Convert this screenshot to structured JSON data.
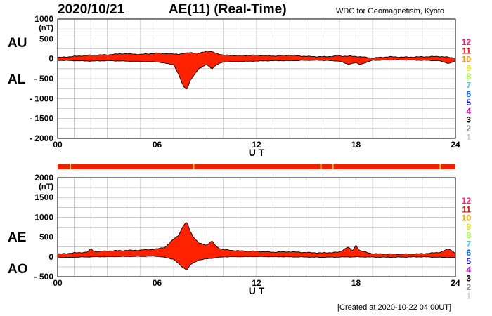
{
  "header": {
    "date": "2020/10/21",
    "title": "AE(11) (Real-Time)",
    "source": "WDC for Geomagnetism, Kyoto"
  },
  "footer": {
    "created": "[Created at 2020-10-22 04:00UT]"
  },
  "colors": {
    "fill": "#ff2200",
    "station_bar": "#ee2200",
    "station_gap": "#ffcc33",
    "grid": "#aaaaaa",
    "axis": "#000000"
  },
  "station_legend": [
    {
      "label": "12",
      "color": "#ff1a75"
    },
    {
      "label": "11",
      "color": "#ff0000"
    },
    {
      "label": "10",
      "color": "#ff9900"
    },
    {
      "label": "9",
      "color": "#e6e600"
    },
    {
      "label": "8",
      "color": "#99ff33"
    },
    {
      "label": "7",
      "color": "#33ccff"
    },
    {
      "label": "6",
      "color": "#0066ff"
    },
    {
      "label": "5",
      "color": "#0000cc"
    },
    {
      "label": "4",
      "color": "#cc00cc"
    },
    {
      "label": "3",
      "color": "#000000"
    },
    {
      "label": "2",
      "color": "#888888"
    },
    {
      "label": "1",
      "color": "#cccccc"
    }
  ],
  "chart_data": [
    {
      "type": "area",
      "upper_series_label": "AU",
      "lower_series_label": "AL",
      "unit": "(nT)",
      "xlabel": "U T",
      "xlim": [
        0,
        24
      ],
      "ylim": [
        -2000,
        1000
      ],
      "x_ticks": [
        {
          "v": 0,
          "label": "00"
        },
        {
          "v": 6,
          "label": "06"
        },
        {
          "v": 12,
          "label": "12"
        },
        {
          "v": 18,
          "label": "18"
        },
        {
          "v": 24,
          "label": "24"
        }
      ],
      "y_ticks": [
        {
          "v": 1000,
          "label": "1000"
        },
        {
          "v": 500,
          "label": "500"
        },
        {
          "v": 0,
          "label": "0"
        },
        {
          "v": -500,
          "label": "- 500"
        },
        {
          "v": -1000,
          "label": "- 1000"
        },
        {
          "v": -1500,
          "label": "- 1500"
        },
        {
          "v": -2000,
          "label": "- 2000"
        }
      ],
      "grid": true,
      "series": [
        {
          "name": "AU",
          "x": [
            0,
            1,
            2,
            3,
            4,
            5,
            6,
            7,
            7.5,
            8,
            8.5,
            9,
            9.5,
            10,
            11,
            12,
            13,
            14,
            15,
            16,
            17,
            18,
            19,
            20,
            21,
            22,
            23,
            24
          ],
          "values": [
            30,
            60,
            90,
            100,
            130,
            110,
            140,
            120,
            120,
            160,
            130,
            200,
            150,
            90,
            80,
            90,
            70,
            90,
            60,
            50,
            70,
            60,
            20,
            50,
            40,
            50,
            60,
            20
          ]
        },
        {
          "name": "AL",
          "x": [
            0,
            1,
            2,
            3,
            4,
            5,
            6,
            7,
            7.3,
            7.6,
            7.8,
            8,
            8.5,
            9,
            9.3,
            9.6,
            10,
            11,
            12,
            13,
            14,
            15,
            16,
            17,
            17.5,
            18,
            18.2,
            19,
            20,
            21,
            22,
            23,
            23.6,
            24
          ],
          "values": [
            -40,
            -50,
            -60,
            -50,
            -60,
            -70,
            -80,
            -150,
            -400,
            -700,
            -780,
            -550,
            -250,
            -150,
            -250,
            -150,
            -80,
            -70,
            -60,
            -50,
            -50,
            -40,
            -40,
            -60,
            -140,
            -100,
            -150,
            -40,
            -30,
            -30,
            -40,
            -50,
            -120,
            -60
          ]
        }
      ]
    },
    {
      "type": "area",
      "upper_series_label": "AE",
      "lower_series_label": "AO",
      "unit": "(nT)",
      "xlabel": "U T",
      "xlim": [
        0,
        24
      ],
      "ylim": [
        -500,
        2000
      ],
      "x_ticks": [
        {
          "v": 0,
          "label": "00"
        },
        {
          "v": 6,
          "label": "06"
        },
        {
          "v": 12,
          "label": "12"
        },
        {
          "v": 18,
          "label": "18"
        },
        {
          "v": 24,
          "label": "24"
        }
      ],
      "y_ticks": [
        {
          "v": 2000,
          "label": "2000"
        },
        {
          "v": 1500,
          "label": "1500"
        },
        {
          "v": 1000,
          "label": "1000"
        },
        {
          "v": 500,
          "label": "500"
        },
        {
          "v": 0,
          "label": "0"
        },
        {
          "v": -500,
          "label": "- 500"
        }
      ],
      "grid": true,
      "series": [
        {
          "name": "AE",
          "x": [
            0,
            1,
            1.8,
            2,
            2.3,
            3,
            4,
            5,
            6,
            6.5,
            7,
            7.3,
            7.6,
            7.8,
            8,
            8.2,
            8.5,
            9,
            9.3,
            9.6,
            10,
            11,
            12,
            13,
            14,
            15,
            16,
            17,
            17.5,
            17.8,
            18,
            18.2,
            18.5,
            19,
            20,
            21,
            22,
            23,
            23.6,
            24
          ],
          "values": [
            70,
            100,
            120,
            200,
            130,
            150,
            160,
            170,
            200,
            250,
            450,
            550,
            800,
            880,
            650,
            500,
            350,
            300,
            400,
            250,
            180,
            150,
            140,
            120,
            130,
            110,
            100,
            120,
            250,
            150,
            300,
            160,
            130,
            80,
            70,
            70,
            80,
            110,
            200,
            100
          ]
        },
        {
          "name": "AO",
          "x": [
            0,
            2,
            4,
            6,
            7,
            7.5,
            7.8,
            8,
            8.5,
            9,
            10,
            12,
            14,
            16,
            18,
            20,
            22,
            24
          ],
          "values": [
            -20,
            0,
            10,
            20,
            -60,
            -250,
            -330,
            -200,
            -80,
            -50,
            0,
            10,
            0,
            -10,
            0,
            -10,
            0,
            -20
          ]
        }
      ]
    }
  ]
}
